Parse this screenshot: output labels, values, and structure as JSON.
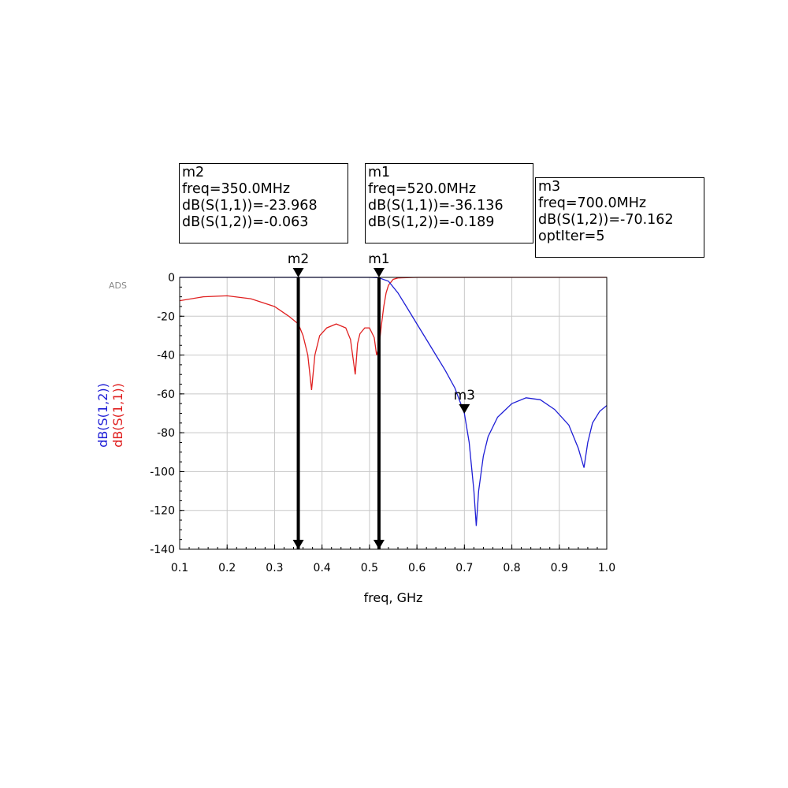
{
  "chart_data": {
    "type": "line",
    "watermark": "ADS",
    "xlabel": "freq, GHz",
    "ylabels": [
      {
        "text": "dB(S(1,2))",
        "color": "#1f1fd6"
      },
      {
        "text": "dB(S(1,1))",
        "color": "#e02020"
      }
    ],
    "xlim": [
      0.1,
      1.0
    ],
    "ylim": [
      -140,
      0
    ],
    "x_ticks": [
      "0.1",
      "0.2",
      "0.3",
      "0.4",
      "0.5",
      "0.6",
      "0.7",
      "0.8",
      "0.9",
      "1.0"
    ],
    "y_ticks": [
      "0",
      "-20",
      "-40",
      "-60",
      "-80",
      "-100",
      "-120",
      "-140"
    ],
    "grid": true,
    "series": [
      {
        "name": "dB(S(1,1))",
        "color": "#e02020",
        "points": [
          [
            0.1,
            -12.0
          ],
          [
            0.15,
            -10.0
          ],
          [
            0.2,
            -9.5
          ],
          [
            0.25,
            -11.0
          ],
          [
            0.3,
            -15.0
          ],
          [
            0.33,
            -20.0
          ],
          [
            0.35,
            -24.0
          ],
          [
            0.36,
            -30.0
          ],
          [
            0.37,
            -40.0
          ],
          [
            0.378,
            -58.0
          ],
          [
            0.385,
            -40.0
          ],
          [
            0.395,
            -30.0
          ],
          [
            0.41,
            -26.0
          ],
          [
            0.43,
            -24.0
          ],
          [
            0.45,
            -26.0
          ],
          [
            0.46,
            -32.0
          ],
          [
            0.47,
            -50.0
          ],
          [
            0.475,
            -34.0
          ],
          [
            0.48,
            -29.0
          ],
          [
            0.49,
            -26.0
          ],
          [
            0.5,
            -26.0
          ],
          [
            0.51,
            -31.0
          ],
          [
            0.515,
            -40.0
          ],
          [
            0.52,
            -36.0
          ],
          [
            0.525,
            -25.0
          ],
          [
            0.53,
            -15.0
          ],
          [
            0.535,
            -8.0
          ],
          [
            0.54,
            -4.0
          ],
          [
            0.55,
            -1.0
          ],
          [
            0.56,
            -0.3
          ],
          [
            0.6,
            0.0
          ],
          [
            0.7,
            0.0
          ],
          [
            0.8,
            0.0
          ],
          [
            0.9,
            0.0
          ],
          [
            1.0,
            0.0
          ]
        ]
      },
      {
        "name": "dB(S(1,2))",
        "color": "#1f1fd6",
        "points": [
          [
            0.1,
            0.0
          ],
          [
            0.4,
            0.0
          ],
          [
            0.5,
            0.0
          ],
          [
            0.52,
            -0.2
          ],
          [
            0.54,
            -2.0
          ],
          [
            0.56,
            -8.0
          ],
          [
            0.58,
            -16.0
          ],
          [
            0.6,
            -24.0
          ],
          [
            0.62,
            -32.0
          ],
          [
            0.64,
            -40.0
          ],
          [
            0.66,
            -48.0
          ],
          [
            0.68,
            -57.0
          ],
          [
            0.7,
            -70.0
          ],
          [
            0.71,
            -85.0
          ],
          [
            0.72,
            -110.0
          ],
          [
            0.725,
            -128.0
          ],
          [
            0.73,
            -110.0
          ],
          [
            0.74,
            -92.0
          ],
          [
            0.75,
            -82.0
          ],
          [
            0.77,
            -72.0
          ],
          [
            0.8,
            -65.0
          ],
          [
            0.83,
            -62.0
          ],
          [
            0.86,
            -63.0
          ],
          [
            0.89,
            -68.0
          ],
          [
            0.92,
            -76.0
          ],
          [
            0.94,
            -88.0
          ],
          [
            0.952,
            -98.0
          ],
          [
            0.96,
            -85.0
          ],
          [
            0.97,
            -75.0
          ],
          [
            0.985,
            -69.0
          ],
          [
            1.0,
            -66.0
          ]
        ]
      }
    ],
    "markers": [
      {
        "label": "m2",
        "freq": 0.35,
        "value": 0.0,
        "vertical_line": true,
        "lines": [
          "m2",
          "freq=350.0MHz",
          "dB(S(1,1))=-23.968",
          "dB(S(1,2))=-0.063"
        ]
      },
      {
        "label": "m1",
        "freq": 0.52,
        "value": 0.0,
        "vertical_line": true,
        "lines": [
          "m1",
          "freq=520.0MHz",
          "dB(S(1,1))=-36.136",
          "dB(S(1,2))=-0.189"
        ]
      },
      {
        "label": "m3",
        "freq": 0.7,
        "value": -70.162,
        "vertical_line": false,
        "lines": [
          "m3",
          "freq=700.0MHz",
          "dB(S(1,2))=-70.162",
          "optIter=5"
        ]
      }
    ]
  }
}
